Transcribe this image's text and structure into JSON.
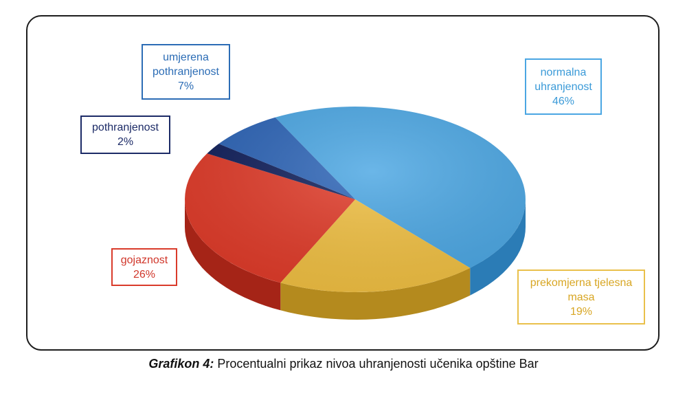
{
  "chart_data": {
    "type": "pie",
    "title": "",
    "slices": [
      {
        "label_lines": [
          "normalna",
          "uhranjenost"
        ],
        "value_text": "46%",
        "value": 46,
        "color": "#4aa6e3",
        "side": "#2b7cb6"
      },
      {
        "label_lines": [
          "prekomjerna tjelesna",
          "masa"
        ],
        "value_text": "19%",
        "value": 19,
        "color": "#f0bf41",
        "side": "#b48a1e"
      },
      {
        "label_lines": [
          "gojaznost"
        ],
        "value_text": "26%",
        "value": 26,
        "color": "#e03a28",
        "side": "#a52417"
      },
      {
        "label_lines": [
          "pothranjenost"
        ],
        "value_text": "2%",
        "value": 2,
        "color": "#0f1e5a",
        "side": "#091338"
      },
      {
        "label_lines": [
          "umjerena",
          "pothranjenost"
        ],
        "value_text": "7%",
        "value": 7,
        "color": "#2b63b6",
        "side": "#1c4584"
      }
    ],
    "label_colors": {
      "normalna": "#4aa6e3",
      "prekomjerna": "#e6b53a",
      "gojaznost": "#d93a2a",
      "pothranjenost": "#1b2a66",
      "umjerena": "#2b6cb5"
    }
  },
  "caption": {
    "bold": "Grafikon 4:",
    "text": " Procentualni prikaz nivoa uhranjenosti učenika opštine Bar"
  }
}
